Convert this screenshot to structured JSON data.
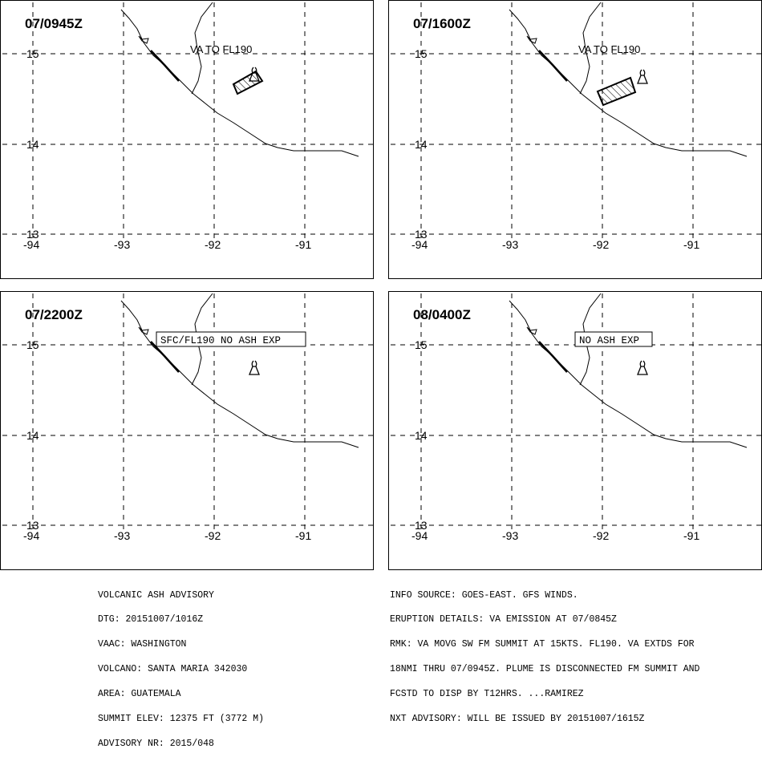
{
  "panels": [
    {
      "time_label": "07/0945Z",
      "text_label": "VA TO FL190",
      "label_boxed": false,
      "plume": "p1",
      "show_volcano": false
    },
    {
      "time_label": "07/1600Z",
      "text_label": "VA TO FL190",
      "label_boxed": false,
      "plume": "p2",
      "show_volcano": true
    },
    {
      "time_label": "07/2200Z",
      "text_label": "SFC/FL190 NO ASH EXP",
      "label_boxed": true,
      "plume": "",
      "show_volcano": true
    },
    {
      "time_label": "08/0400Z",
      "text_label": "NO ASH EXP",
      "label_boxed": true,
      "plume": "",
      "show_volcano": true
    }
  ],
  "map": {
    "lat_labels": [
      "15",
      "14",
      "13"
    ],
    "lon_labels": [
      "-94",
      "-93",
      "-92",
      "-91"
    ]
  },
  "advisory_left": [
    "VOLCANIC ASH ADVISORY",
    "DTG: 20151007/1016Z",
    "VAAC: WASHINGTON",
    "VOLCANO: SANTA MARIA 342030",
    "AREA: GUATEMALA",
    "SUMMIT ELEV: 12375 FT (3772 M)",
    "ADVISORY NR: 2015/048"
  ],
  "advisory_right": [
    "INFO SOURCE: GOES-EAST. GFS WINDS.",
    "ERUPTION DETAILS: VA EMISSION AT 07/0845Z",
    "RMK: VA MOVG SW FM SUMMIT AT 15KTS. FL190. VA EXTDS FOR",
    "18NMI THRU 07/0945Z. PLUME IS DISCONNECTED FM SUMMIT AND",
    "FCSTD TO DISP BY T12HRS. ...RAMIREZ",
    "NXT ADVISORY: WILL BE ISSUED BY 20151007/1615Z"
  ]
}
